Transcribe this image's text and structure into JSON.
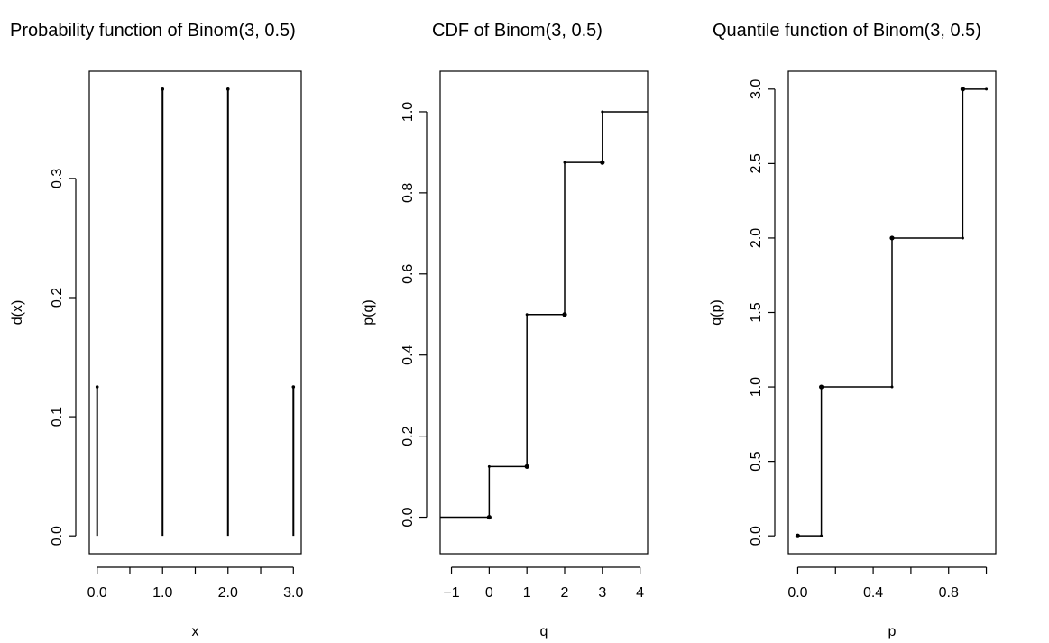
{
  "chart_data": [
    {
      "type": "bar",
      "title": "Probability function of Binom(3, 0.5)",
      "title_visible": "Probability function of Binom(3, ı",
      "xlabel": "x",
      "ylabel": "d(x)",
      "xlim": [
        -0.12,
        3.12
      ],
      "ylim": [
        -0.015,
        0.39
      ],
      "x_ticks": [
        0,
        0.5,
        1,
        1.5,
        2,
        2.5,
        3
      ],
      "x_tick_labels": [
        {
          "value": 0,
          "label": "0.0"
        },
        {
          "value": 1,
          "label": "1.0"
        },
        {
          "value": 2,
          "label": "2.0"
        },
        {
          "value": 3,
          "label": "3.0"
        }
      ],
      "y_ticks": [
        {
          "value": 0,
          "label": "0.0"
        },
        {
          "value": 0.1,
          "label": "0.1"
        },
        {
          "value": 0.2,
          "label": "0.2"
        },
        {
          "value": 0.3,
          "label": "0.3"
        }
      ],
      "x": [
        0,
        1,
        2,
        3
      ],
      "values": [
        0.125,
        0.375,
        0.375,
        0.125
      ]
    },
    {
      "type": "line",
      "title": "CDF of Binom(3, 0.5)",
      "xlabel": "q",
      "ylabel": "p(q)",
      "xlim": [
        -1.3,
        4.2
      ],
      "ylim": [
        -0.09,
        1.1
      ],
      "x_ticks": [
        {
          "value": -1,
          "label": "−1"
        },
        {
          "value": 0,
          "label": "0"
        },
        {
          "value": 1,
          "label": "1"
        },
        {
          "value": 2,
          "label": "2"
        },
        {
          "value": 3,
          "label": "3"
        },
        {
          "value": 4,
          "label": "4"
        }
      ],
      "y_ticks": [
        {
          "value": 0,
          "label": "0.0"
        },
        {
          "value": 0.2,
          "label": "0.2"
        },
        {
          "value": 0.4,
          "label": "0.4"
        },
        {
          "value": 0.6,
          "label": "0.6"
        },
        {
          "value": 0.8,
          "label": "0.8"
        },
        {
          "value": 1,
          "label": "1.0"
        }
      ],
      "step_x": [
        0,
        1,
        2,
        3
      ],
      "step_y": [
        0.125,
        0.5,
        0.875,
        1.0
      ]
    },
    {
      "type": "line",
      "title": "Quantile function of Binom(3, 0.5)",
      "title_visible": "Quantile function of Binom(3, 0",
      "xlabel": "p",
      "ylabel": "q(p)",
      "xlim": [
        -0.05,
        1.05
      ],
      "ylim": [
        -0.12,
        3.12
      ],
      "x_ticks": [
        0,
        0.2,
        0.4,
        0.6,
        0.8,
        1.0
      ],
      "x_tick_labels": [
        {
          "value": 0,
          "label": "0.0"
        },
        {
          "value": 0.4,
          "label": "0.4"
        },
        {
          "value": 0.8,
          "label": "0.8"
        }
      ],
      "y_ticks": [
        {
          "value": 0,
          "label": "0.0"
        },
        {
          "value": 0.5,
          "label": "0.5"
        },
        {
          "value": 1,
          "label": "1.0"
        },
        {
          "value": 1.5,
          "label": "1.5"
        },
        {
          "value": 2,
          "label": "2.0"
        },
        {
          "value": 2.5,
          "label": "2.5"
        },
        {
          "value": 3,
          "label": "3.0"
        }
      ],
      "step_p": [
        0.125,
        0.5,
        0.875
      ],
      "step_q": [
        0,
        1,
        2,
        3
      ]
    }
  ]
}
